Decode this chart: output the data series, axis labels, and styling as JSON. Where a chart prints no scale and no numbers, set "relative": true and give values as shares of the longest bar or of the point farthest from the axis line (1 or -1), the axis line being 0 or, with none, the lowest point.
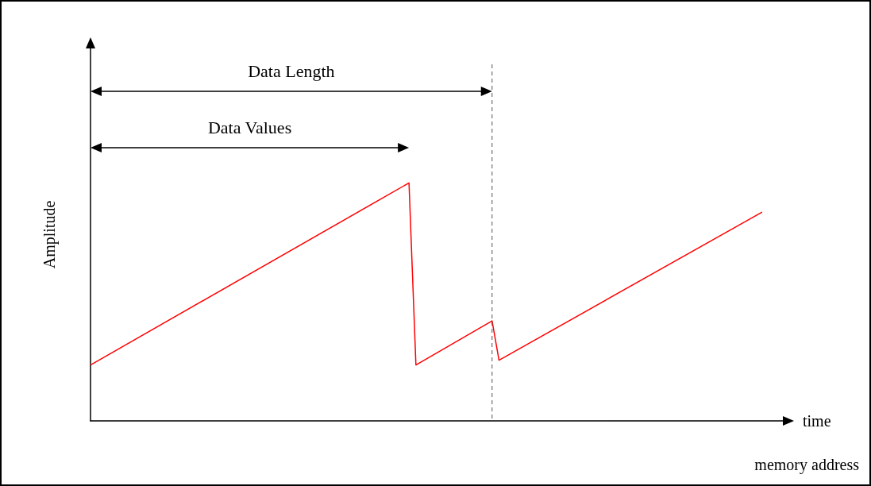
{
  "chart_data": {
    "type": "line",
    "relative": true,
    "ylabel": "Amplitude",
    "xlabel": "time",
    "categories": [
      null,
      null,
      null,
      null,
      null,
      null,
      null,
      null,
      null,
      null,
      null,
      null,
      null,
      null,
      null,
      null,
      null,
      null,
      null,
      null,
      null,
      null,
      null,
      null,
      null,
      null,
      null,
      null,
      null,
      null,
      null,
      null,
      null,
      null,
      null,
      null,
      null,
      null,
      null,
      null,
      null,
      null,
      null,
      null,
      null,
      null,
      null,
      null,
      null,
      null,
      null,
      null,
      null,
      null,
      null,
      null,
      null,
      null,
      null,
      null,
      null,
      null,
      null,
      null,
      null,
      null,
      null,
      null,
      null,
      null,
      null,
      null,
      null,
      null,
      null,
      null,
      null,
      null,
      null,
      null,
      null,
      null,
      null,
      null,
      null,
      null,
      null,
      null,
      null,
      null,
      null,
      null,
      null,
      null,
      null,
      null,
      null,
      null,
      null,
      null,
      null
    ],
    "series": [
      {
        "color": "#ff0000",
        "values": [
          0.235,
          null,
          null,
          null,
          null,
          null,
          null,
          null,
          null,
          null,
          null,
          null,
          null,
          null,
          null,
          null,
          null,
          null,
          null,
          null,
          null,
          null,
          null,
          null,
          null,
          null,
          null,
          null,
          null,
          null,
          null,
          null,
          null,
          null,
          null,
          null,
          null,
          null,
          null,
          null,
          null,
          null,
          null,
          null,
          null,
          null,
          1,
          0.235,
          null,
          null,
          null,
          null,
          null,
          null,
          null,
          null,
          null,
          null,
          0.42,
          0.255,
          null,
          null,
          null,
          null,
          null,
          null,
          null,
          null,
          null,
          null,
          null,
          null,
          null,
          null,
          null,
          null,
          null,
          null,
          null,
          null,
          null,
          null,
          null,
          null,
          null,
          null,
          null,
          null,
          null,
          null,
          null,
          null,
          null,
          null,
          null,
          null,
          null,
          0.877,
          null,
          null,
          null
        ]
      }
    ],
    "annotations": [
      "Data Length",
      "Data Values",
      "memory address"
    ],
    "marker": "none",
    "line_style": "solid"
  }
}
